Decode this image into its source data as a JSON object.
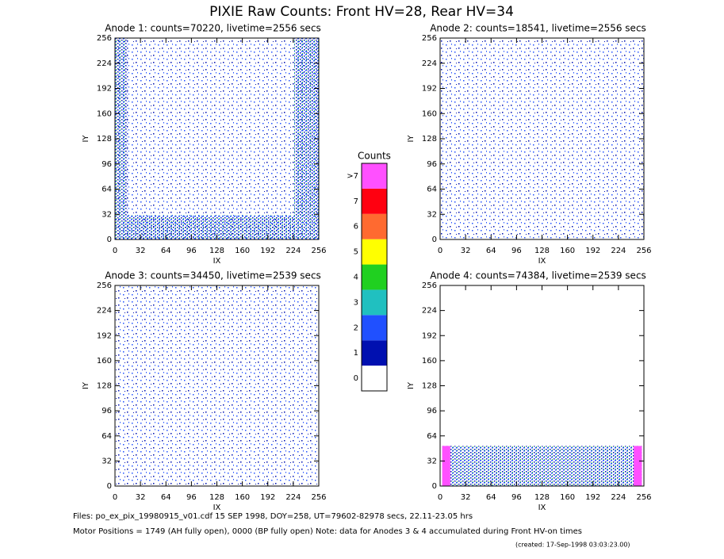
{
  "title": "PIXIE Raw Counts:  Front HV=28, Rear HV=34",
  "chart_data": [
    {
      "type": "heatmap",
      "title": "Anode 1: counts=70220, livetime=2556 secs",
      "xlabel": "IX",
      "ylabel": "IY",
      "xlim": [
        0,
        256
      ],
      "ylim": [
        0,
        256
      ],
      "xticks": [
        0,
        32,
        64,
        96,
        128,
        160,
        192,
        224,
        256
      ],
      "yticks": [
        0,
        32,
        64,
        96,
        128,
        160,
        192,
        224,
        256
      ]
    },
    {
      "type": "heatmap",
      "title": "Anode 2: counts=18541, livetime=2556 secs",
      "xlabel": "IX",
      "ylabel": "IY",
      "xlim": [
        0,
        256
      ],
      "ylim": [
        0,
        256
      ],
      "xticks": [
        0,
        32,
        64,
        96,
        128,
        160,
        192,
        224,
        256
      ],
      "yticks": [
        0,
        32,
        64,
        96,
        128,
        160,
        192,
        224,
        256
      ]
    },
    {
      "type": "heatmap",
      "title": "Anode 3: counts=34450, livetime=2539 secs",
      "xlabel": "IX",
      "ylabel": "IY",
      "xlim": [
        0,
        256
      ],
      "ylim": [
        0,
        256
      ],
      "xticks": [
        0,
        32,
        64,
        96,
        128,
        160,
        192,
        224,
        256
      ],
      "yticks": [
        0,
        32,
        64,
        96,
        128,
        160,
        192,
        224,
        256
      ]
    },
    {
      "type": "heatmap",
      "title": "Anode 4: counts=74384, livetime=2539 secs",
      "xlabel": "IX",
      "ylabel": "IY",
      "xlim": [
        0,
        256
      ],
      "ylim": [
        0,
        256
      ],
      "xticks": [
        0,
        32,
        64,
        96,
        128,
        160,
        192,
        224,
        256
      ],
      "yticks": [
        0,
        32,
        64,
        96,
        128,
        160,
        192,
        224,
        256
      ]
    }
  ],
  "colorbar": {
    "title": "Counts",
    "ticks": [
      0,
      1,
      2,
      3,
      4,
      5,
      6,
      7,
      {
        "value": 8,
        "label": ">7"
      }
    ],
    "colors": [
      "#ffffff",
      "#0010b0",
      "#2050ff",
      "#20c0c0",
      "#20d020",
      "#ffff00",
      "#ff6a30",
      "#ff0010",
      "#ff50ff"
    ]
  },
  "footer": {
    "files": "Files: po_ex_pix_19980915_v01.cdf     15 SEP 1998, DOY=258, UT=79602-82978 secs, 22.11-23.05 hrs",
    "motor": "Motor Positions = 1749 (AH fully open), 0000 (BP fully open)    Note: data for Anodes 3 & 4 accumulated during Front HV-on times",
    "created": "(created: 17-Sep-1998 03:03:23.00)"
  }
}
